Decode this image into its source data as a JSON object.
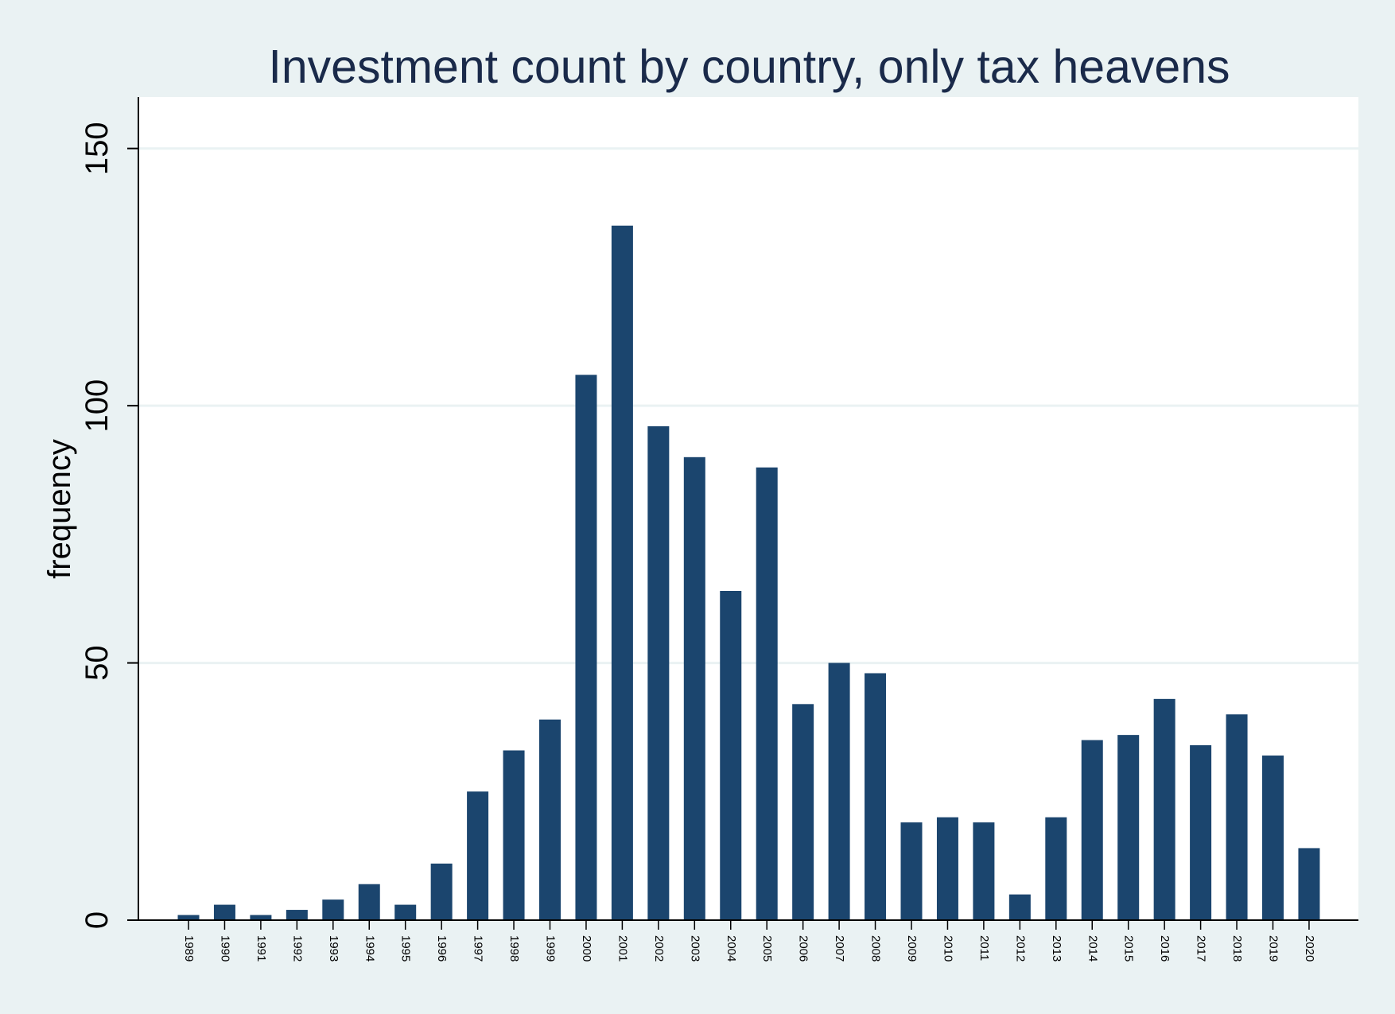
{
  "chart_data": {
    "type": "bar",
    "title": "Investment count by country, only tax heavens",
    "xlabel": "",
    "ylabel": "frequency",
    "ylim": [
      0,
      160
    ],
    "yticks": [
      0,
      50,
      100,
      150
    ],
    "grid": true,
    "legend": "none",
    "categories": [
      "1989",
      "1990",
      "1991",
      "1992",
      "1993",
      "1994",
      "1995",
      "1996",
      "1997",
      "1998",
      "1999",
      "2000",
      "2001",
      "2002",
      "2003",
      "2004",
      "2005",
      "2006",
      "2007",
      "2008",
      "2009",
      "2010",
      "2011",
      "2012",
      "2013",
      "2014",
      "2015",
      "2016",
      "2017",
      "2018",
      "2019",
      "2020"
    ],
    "values": [
      1,
      3,
      1,
      2,
      4,
      7,
      3,
      11,
      25,
      33,
      39,
      106,
      135,
      96,
      90,
      64,
      88,
      42,
      50,
      48,
      19,
      20,
      19,
      5,
      20,
      35,
      36,
      43,
      34,
      40,
      32,
      14
    ],
    "colors": {
      "bar": "#1b456e",
      "background": "#eaf2f3",
      "plot_background": "#ffffff",
      "grid": "#eaf2f3",
      "title": "#1a2a4a"
    }
  }
}
